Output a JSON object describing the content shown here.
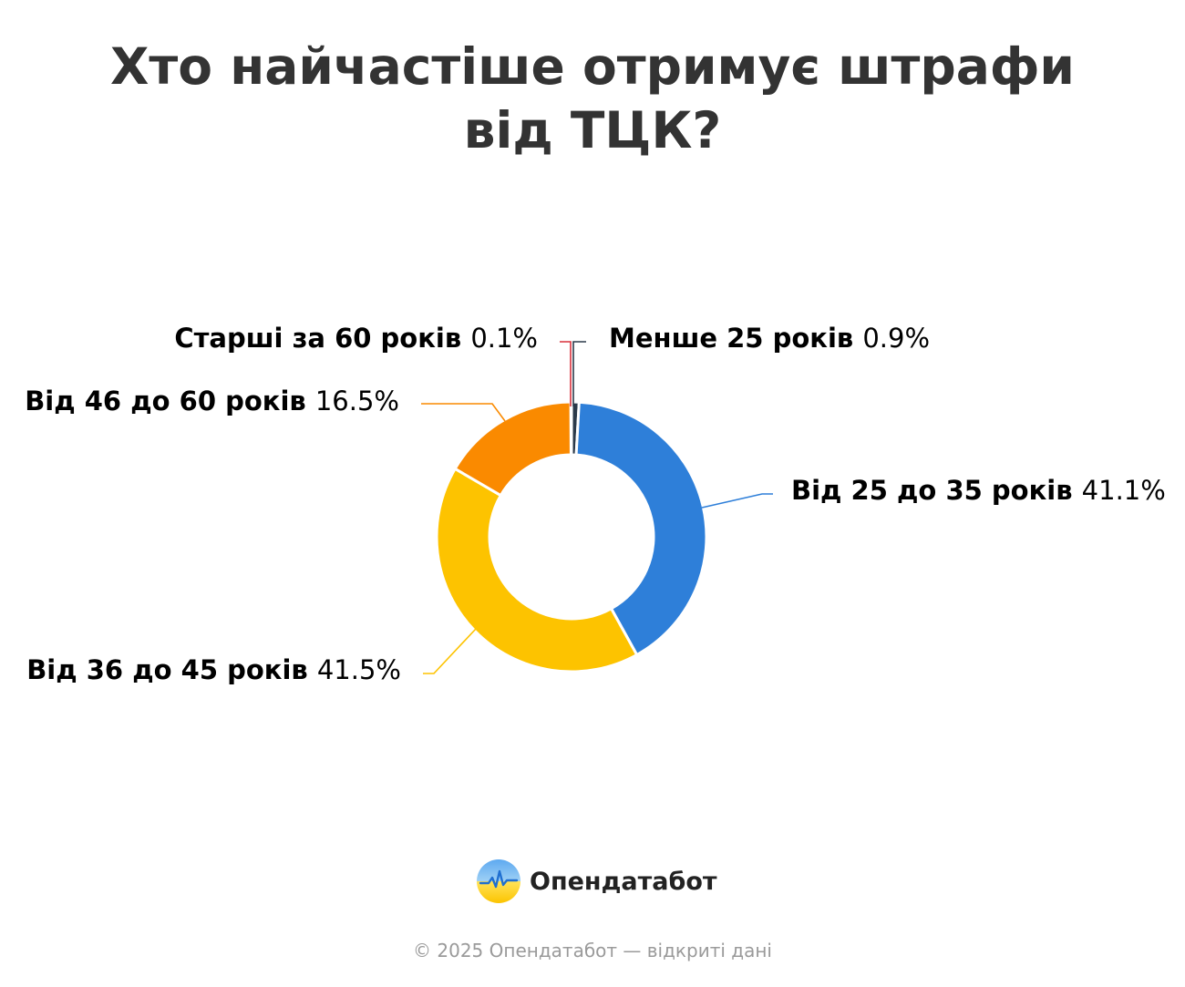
{
  "title": "Хто найчастіше отримує штрафи від ТЦК?",
  "chart_data": {
    "type": "pie",
    "variant": "donut",
    "title": "Хто найчастіше отримує штрафи від ТЦК?",
    "unit": "%",
    "categories": [
      "Менше 25 років",
      "Від 25 до 35 років",
      "Від 36 до 45 років",
      "Від 46 до 60 років",
      "Старші за 60 років"
    ],
    "values": [
      0.9,
      41.1,
      41.5,
      16.5,
      0.1
    ],
    "value_labels": [
      "0.9%",
      "41.1%",
      "41.5%",
      "16.5%",
      "0.1%"
    ],
    "colors": [
      "#2b3a4a",
      "#2e7fd9",
      "#fdc300",
      "#fa8a00",
      "#d9303b"
    ],
    "legend": "none"
  },
  "brand": {
    "name": "Опендатабот"
  },
  "footer": "© 2025 Опендатабот — відкриті дані"
}
